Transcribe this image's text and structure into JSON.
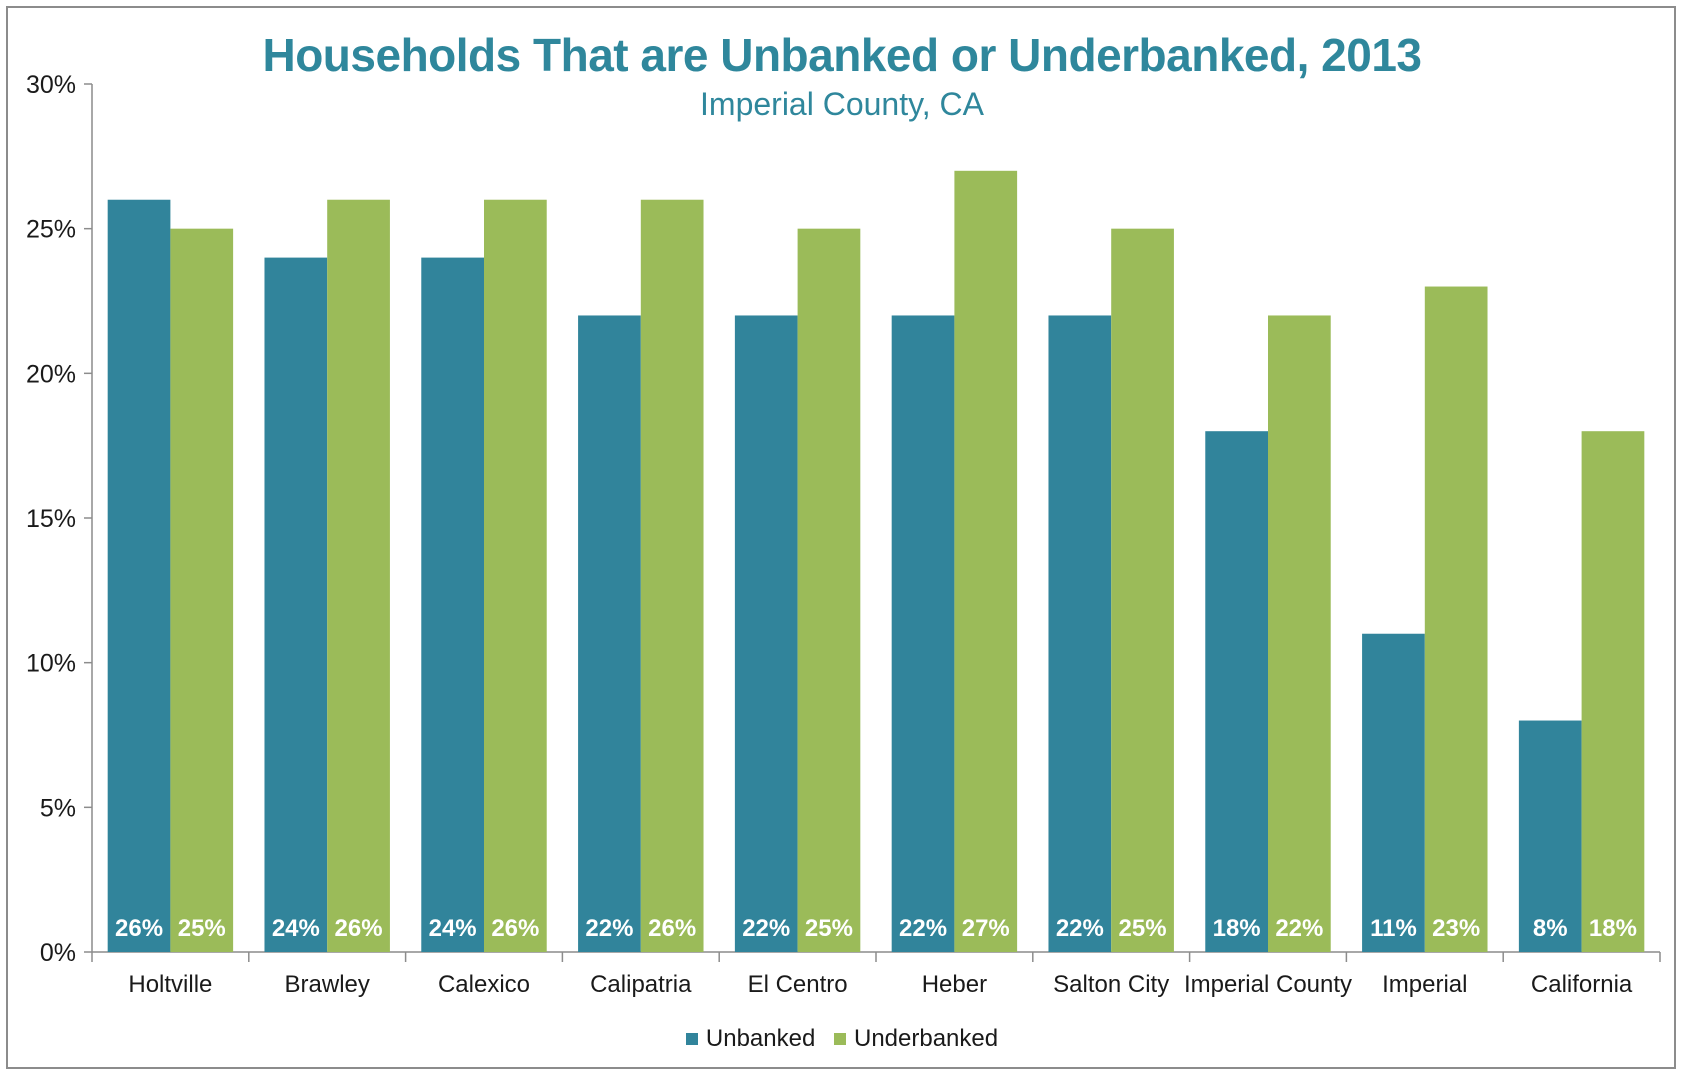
{
  "chart_data": {
    "type": "bar",
    "title": "Households That are Unbanked or Underbanked, 2013",
    "subtitle": "Imperial County, CA",
    "categories": [
      "Holtville",
      "Brawley",
      "Calexico",
      "Calipatria",
      "El Centro",
      "Heber",
      "Salton City",
      "Imperial County",
      "Imperial",
      "California"
    ],
    "series": [
      {
        "name": "Unbanked",
        "color": "#31849b",
        "values": [
          26,
          24,
          24,
          22,
          22,
          22,
          22,
          18,
          11,
          8
        ],
        "labels": [
          "26%",
          "24%",
          "24%",
          "22%",
          "22%",
          "22%",
          "22%",
          "18%",
          "11%",
          "8%"
        ]
      },
      {
        "name": "Underbanked",
        "color": "#9bbb59",
        "values": [
          25,
          26,
          26,
          26,
          25,
          27,
          25,
          22,
          23,
          18
        ],
        "labels": [
          "25%",
          "26%",
          "26%",
          "26%",
          "25%",
          "27%",
          "25%",
          "22%",
          "23%",
          "18%"
        ]
      }
    ],
    "ylim": [
      0,
      30
    ],
    "yticks": [
      0,
      5,
      10,
      15,
      20,
      25,
      30
    ],
    "ytick_labels": [
      "0%",
      "5%",
      "10%",
      "15%",
      "20%",
      "25%",
      "30%"
    ],
    "xlabel": "",
    "ylabel": "",
    "grid": false,
    "legend_position": "bottom"
  }
}
